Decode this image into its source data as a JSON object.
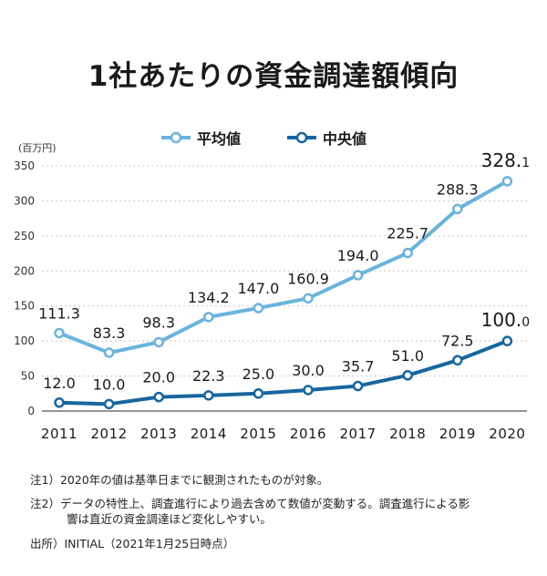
{
  "title": "1社あたりの資金調達額傾向",
  "unit_label": "(百万円)",
  "notes": {
    "note1": "注1）2020年の値は基準日までに観測されたものが対象。",
    "note2_line1": "注2）データの特性上、調査進行により過去含めて数値が変動する。調査進行による影",
    "note2_line2": "響は直近の資金調達ほど変化しやすい。",
    "source": "出所）INITIAL（2021年1月25日時点）"
  },
  "chart_data": {
    "type": "line",
    "x": [
      "2011",
      "2012",
      "2013",
      "2014",
      "2015",
      "2016",
      "2017",
      "2018",
      "2019",
      "2020"
    ],
    "ylim": [
      0,
      350
    ],
    "yticks": [
      "0",
      "50",
      "100",
      "150",
      "200",
      "250",
      "300",
      "350"
    ],
    "grid": true,
    "legend_position": "top-center",
    "series": [
      {
        "name": "平均値",
        "color": "#6ab4dd",
        "values": [
          111.3,
          83.3,
          98.3,
          134.2,
          147.0,
          160.9,
          194.0,
          225.7,
          288.3,
          328.1
        ],
        "labels": [
          "111.3",
          "83.3",
          "98.3",
          "134.2",
          "147.0",
          "160.9",
          "194.0",
          "225.7",
          "288.3",
          "328.1"
        ]
      },
      {
        "name": "中央値",
        "color": "#17669f",
        "values": [
          12.0,
          10.0,
          20.0,
          22.3,
          25.0,
          30.0,
          35.7,
          51.0,
          72.5,
          100.0
        ],
        "labels": [
          "12.0",
          "10.0",
          "20.0",
          "22.3",
          "25.0",
          "30.0",
          "35.7",
          "51.0",
          "72.5",
          "100.0"
        ]
      }
    ]
  }
}
